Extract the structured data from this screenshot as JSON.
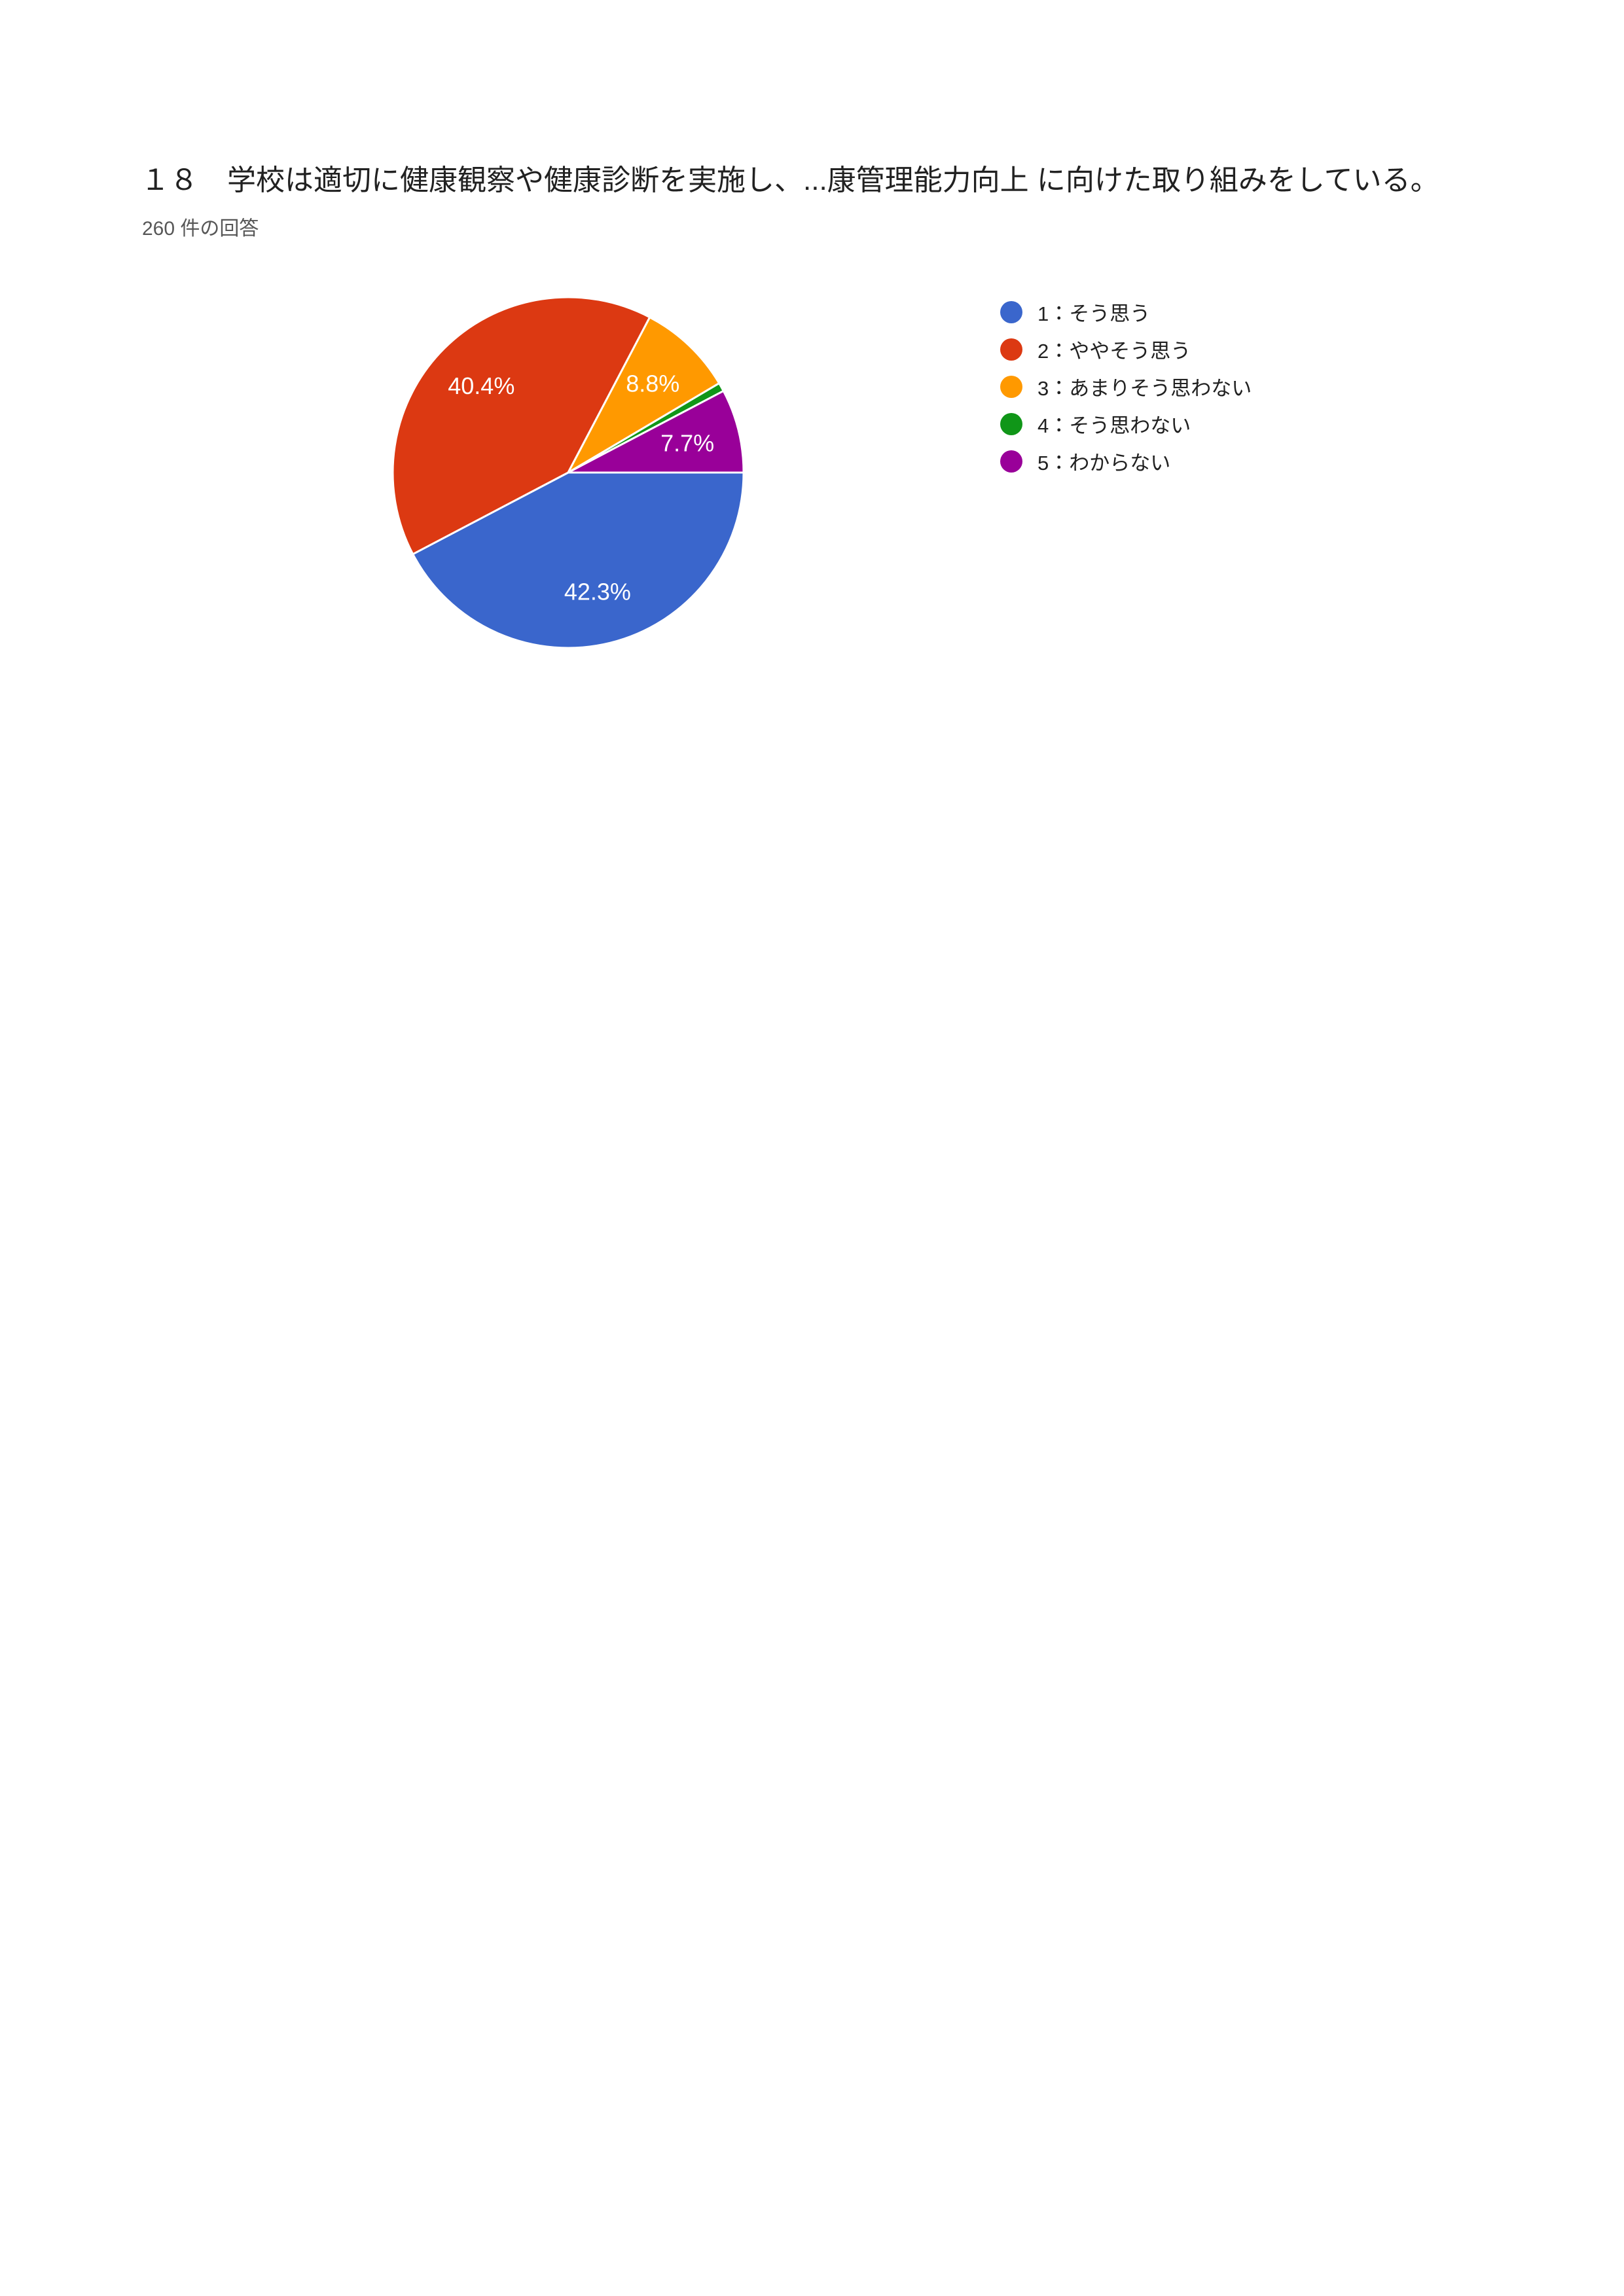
{
  "page": {
    "background_color": "#ffffff"
  },
  "chart_data": {
    "type": "pie",
    "title": "１８　学校は適切に健康観察や健康診断を実施し、...康管理能力向上 に向けた取り組みをしている。",
    "subtitle": "260 件の回答",
    "total_responses": 260,
    "start_angle_deg": 0,
    "direction": "clockwise",
    "legend_position": "right",
    "slice_label_format": "percent",
    "slices": [
      {
        "label": "1：そう思う",
        "percent": 42.3,
        "percent_label": "42.3%",
        "color": "#3A66CC",
        "show_label": true
      },
      {
        "label": "2：ややそう思う",
        "percent": 40.4,
        "percent_label": "40.4%",
        "color": "#DC3912",
        "show_label": true
      },
      {
        "label": "3：あまりそう思わない",
        "percent": 8.8,
        "percent_label": "8.8%",
        "color": "#FF9900",
        "show_label": true
      },
      {
        "label": "4：そう思わない",
        "percent": 0.8,
        "percent_label": "",
        "color": "#109618",
        "show_label": false
      },
      {
        "label": "5：わからない",
        "percent": 7.7,
        "percent_label": "7.7%",
        "color": "#990099",
        "show_label": true
      }
    ],
    "text_colors": {
      "title": "#212121",
      "subtitle": "#575757",
      "legend": "#212121",
      "slice_label": "#ffffff",
      "slice_border": "#ffffff"
    }
  }
}
